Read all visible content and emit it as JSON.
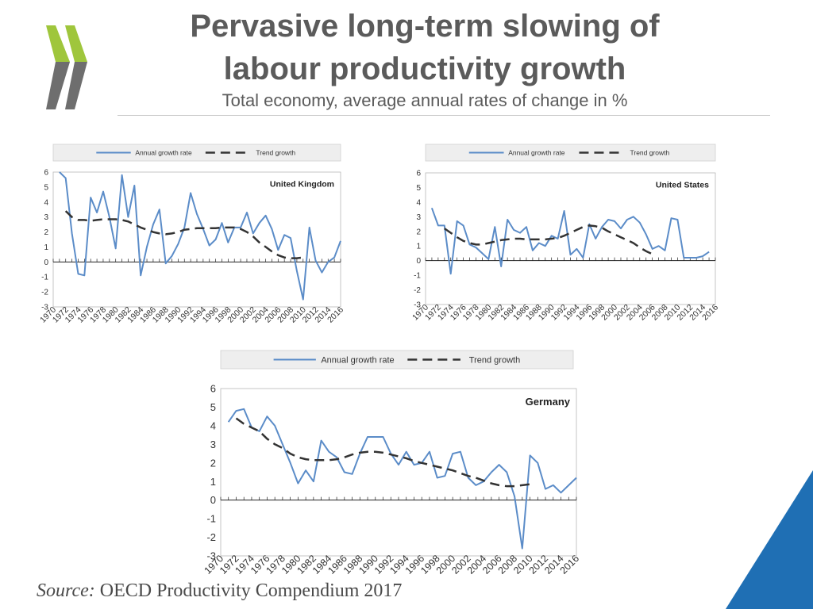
{
  "header": {
    "title_line1": "Pervasive long-term slowing of",
    "title_line2": "labour productivity growth",
    "subtitle": "Total economy, average annual rates of change in %"
  },
  "footer": {
    "source_label": "Source:",
    "source_text": "OECD Productivity Compendium 2017"
  },
  "colors": {
    "title": "#5b5b5b",
    "annual_line": "#5b8cc8",
    "trend_line": "#333333",
    "logo_green": "#9fc63c",
    "logo_grey": "#6e6e6e",
    "corner_blue": "#1f6fb4"
  },
  "chart_data": [
    {
      "type": "line",
      "country": "United Kingdom",
      "legend": [
        "Annual growth rate",
        "Trend growth"
      ],
      "ylim": [
        -3,
        6
      ],
      "yticks": [
        "6",
        "5",
        "4",
        "3",
        "2",
        "1",
        "0",
        "-1",
        "-2",
        "-3"
      ],
      "xticks": [
        "1970",
        "1972",
        "1974",
        "1976",
        "1978",
        "1980",
        "1982",
        "1984",
        "1986",
        "1988",
        "1990",
        "1992",
        "1994",
        "1996",
        "1998",
        "2000",
        "2002",
        "2004",
        "2006",
        "2008",
        "2010",
        "2012",
        "2014",
        "2016"
      ],
      "series": [
        {
          "name": "Annual growth rate",
          "start_year": 1971,
          "values": [
            6.0,
            5.6,
            1.9,
            -0.8,
            -0.9,
            4.3,
            3.3,
            4.7,
            3.0,
            0.9,
            5.8,
            3.0,
            5.1,
            -0.9,
            1.0,
            2.5,
            3.5,
            -0.1,
            0.4,
            1.2,
            2.3,
            4.6,
            3.2,
            2.2,
            1.1,
            1.5,
            2.6,
            1.3,
            2.3,
            2.3,
            3.3,
            1.9,
            2.6,
            3.1,
            2.2,
            0.8,
            1.8,
            1.6,
            -0.6,
            -2.5,
            2.3,
            0.1,
            -0.7,
            0.0,
            0.3,
            1.4
          ]
        },
        {
          "name": "Trend growth",
          "start_year": 1972,
          "values": [
            3.4,
            3.0,
            2.8,
            2.8,
            2.75,
            2.8,
            2.85,
            2.85,
            2.85,
            2.8,
            2.7,
            2.5,
            2.3,
            2.15,
            2.0,
            1.9,
            1.85,
            1.9,
            2.0,
            2.15,
            2.2,
            2.25,
            2.25,
            2.25,
            2.25,
            2.3,
            2.3,
            2.3,
            2.2,
            2.0,
            1.7,
            1.3,
            1.0,
            0.7,
            0.45,
            0.3,
            0.25,
            0.25,
            0.3
          ]
        }
      ]
    },
    {
      "type": "line",
      "country": "United States",
      "legend": [
        "Annual growth rate",
        "Trend growth"
      ],
      "ylim": [
        -3,
        6
      ],
      "yticks": [
        "6",
        "5",
        "4",
        "3",
        "2",
        "1",
        "0",
        "-1",
        "-2",
        "-3"
      ],
      "xticks": [
        "1970",
        "1972",
        "1974",
        "1976",
        "1978",
        "1980",
        "1982",
        "1984",
        "1986",
        "1988",
        "1990",
        "1992",
        "1994",
        "1996",
        "1998",
        "2000",
        "2002",
        "2004",
        "2006",
        "2008",
        "2010",
        "2012",
        "2014",
        "2016"
      ],
      "series": [
        {
          "name": "Annual growth rate",
          "start_year": 1971,
          "values": [
            3.6,
            2.4,
            2.4,
            -0.9,
            2.7,
            2.4,
            1.1,
            0.9,
            0.5,
            0.1,
            2.3,
            -0.4,
            2.8,
            2.1,
            1.9,
            2.3,
            0.7,
            1.2,
            1.0,
            1.7,
            1.5,
            3.4,
            0.4,
            0.8,
            0.2,
            2.5,
            1.5,
            2.3,
            2.8,
            2.7,
            2.2,
            2.8,
            3.0,
            2.6,
            1.8,
            0.8,
            1.0,
            0.7,
            2.9,
            2.8,
            0.2,
            0.2,
            0.2,
            0.3,
            0.6
          ]
        },
        {
          "name": "Trend growth",
          "start_year": 1973,
          "values": [
            2.2,
            1.9,
            1.6,
            1.35,
            1.2,
            1.1,
            1.1,
            1.2,
            1.3,
            1.4,
            1.45,
            1.5,
            1.5,
            1.45,
            1.45,
            1.45,
            1.45,
            1.5,
            1.55,
            1.7,
            1.9,
            2.1,
            2.3,
            2.4,
            2.35,
            2.25,
            2.0,
            1.8,
            1.6,
            1.4,
            1.2,
            0.9,
            0.65,
            0.45
          ]
        }
      ]
    },
    {
      "type": "line",
      "country": "Germany",
      "legend": [
        "Annual growth rate",
        "Trend growth"
      ],
      "ylim": [
        -3,
        6
      ],
      "yticks": [
        "6",
        "5",
        "4",
        "3",
        "2",
        "1",
        "0",
        "-1",
        "-2",
        "-3"
      ],
      "xticks": [
        "1970",
        "1972",
        "1974",
        "1976",
        "1978",
        "1980",
        "1982",
        "1984",
        "1986",
        "1988",
        "1990",
        "1992",
        "1994",
        "1996",
        "1998",
        "2000",
        "2002",
        "2004",
        "2006",
        "2008",
        "2010",
        "2012",
        "2014",
        "2016"
      ],
      "series": [
        {
          "name": "Annual growth rate",
          "start_year": 1971,
          "values": [
            4.2,
            4.8,
            4.9,
            3.9,
            3.7,
            4.5,
            4.0,
            3.0,
            2.0,
            0.9,
            1.6,
            1.0,
            3.2,
            2.6,
            2.3,
            1.5,
            1.4,
            2.5,
            3.4,
            3.4,
            3.4,
            2.5,
            1.9,
            2.6,
            1.9,
            2.0,
            2.6,
            1.2,
            1.3,
            2.5,
            2.6,
            1.2,
            0.8,
            1.0,
            1.5,
            1.9,
            1.5,
            0.2,
            -2.6,
            2.4,
            2.0,
            0.6,
            0.8,
            0.4,
            0.8,
            1.2
          ]
        },
        {
          "name": "Trend growth",
          "start_year": 1972,
          "values": [
            4.4,
            4.1,
            3.9,
            3.7,
            3.3,
            3.0,
            2.8,
            2.5,
            2.3,
            2.2,
            2.15,
            2.15,
            2.15,
            2.2,
            2.3,
            2.45,
            2.55,
            2.6,
            2.6,
            2.55,
            2.45,
            2.35,
            2.25,
            2.1,
            2.0,
            1.9,
            1.8,
            1.7,
            1.6,
            1.45,
            1.3,
            1.2,
            1.05,
            0.9,
            0.8,
            0.75,
            0.75,
            0.8,
            0.85
          ]
        }
      ]
    }
  ]
}
